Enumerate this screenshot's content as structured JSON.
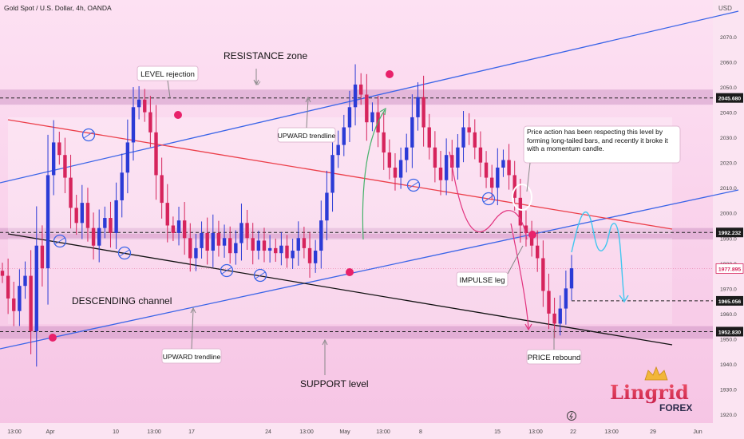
{
  "header": {
    "symbol": "Gold Spot / U.S. Dollar, 4h, OANDA",
    "currency": "USD"
  },
  "annotations": {
    "resistance_zone": "RESISTANCE zone",
    "level_rejection": "LEVEL rejection",
    "upward_trendline_top": "UPWARD trendline",
    "upward_trendline_bottom": "UPWARD trendline",
    "descending_channel": "DESCENDING channel",
    "support_level": "SUPPORT level",
    "impulse_leg": "IMPULSE leg",
    "price_rebound": "PRICE rebound",
    "note": "Price action has been respecting this level by forming long-tailed bars, and recently it broke it with a momentum candle."
  },
  "brand": {
    "name": "Lingrid",
    "sub": "FOREX"
  },
  "colors": {
    "bullish": "#2b3bd6",
    "bearish": "#d6245c",
    "trendline": "#3a64e8",
    "descending_upper": "#ec3f4a",
    "descending_lower": "#111111",
    "zone": "#c88bbe",
    "forecast": "#41c6ef"
  },
  "chart_data": {
    "type": "candlestick",
    "title": "Gold Spot / U.S. Dollar, 4h, OANDA",
    "y_unit": "USD",
    "ylim": [
      1915,
      2085
    ],
    "y_ticks": [
      1920,
      1930,
      1940,
      1950,
      1960,
      1970,
      1980,
      1990,
      2000,
      2010,
      2020,
      2030,
      2040,
      2050,
      2060,
      2070
    ],
    "x_ticks": [
      "13:00",
      "Apr",
      "10",
      "13:00",
      "17",
      "24",
      "13:00",
      "May",
      "13:00",
      "8",
      "15",
      "13:00",
      "22",
      "13:00",
      "29",
      "Jun"
    ],
    "price_labels": [
      {
        "value": 2045.68,
        "label": "2045.680",
        "style": "level"
      },
      {
        "value": 1992.232,
        "label": "1992.232",
        "style": "level"
      },
      {
        "value": 1977.895,
        "label": "1977.895",
        "style": "current"
      },
      {
        "value": 1965.056,
        "label": "1965.056",
        "style": "level"
      },
      {
        "value": 1952.83,
        "label": "1952.830",
        "style": "level"
      }
    ],
    "zones": [
      {
        "name": "resistance",
        "low": 2043,
        "high": 2049
      },
      {
        "name": "mid",
        "low": 1989.5,
        "high": 1994
      },
      {
        "name": "support",
        "low": 1950,
        "high": 1955
      }
    ],
    "close_path": [
      1975,
      1966,
      1961,
      1971,
      1975,
      1953,
      1987,
      1978,
      2015,
      2028,
      2023,
      2014,
      2002,
      1996,
      2004,
      1994,
      1987,
      1994,
      1998,
      1992,
      2005,
      2016,
      2028,
      2042,
      2045,
      2040,
      2032,
      2015,
      2004,
      1995,
      1992,
      1997,
      1990,
      1982,
      1986,
      1992,
      1985,
      1992,
      1987,
      1990,
      1984,
      1988,
      1996,
      1990,
      1985,
      1989,
      1985,
      1986,
      1984,
      1987,
      1982,
      1985,
      1990,
      1986,
      1980,
      1985,
      1997,
      2008,
      2023,
      2027,
      2034,
      2042,
      2051,
      2047,
      2036,
      2040,
      2032,
      2024,
      2018,
      2014,
      2021,
      2026,
      2038,
      2046,
      2034,
      2026,
      2018,
      2013,
      2023,
      2018,
      2026,
      2034,
      2032,
      2026,
      2020,
      2014,
      2010,
      2018,
      2021,
      2015,
      2006,
      1995,
      1992,
      1987,
      1982,
      1969,
      1960,
      1956,
      1962,
      1970,
      1978
    ]
  }
}
